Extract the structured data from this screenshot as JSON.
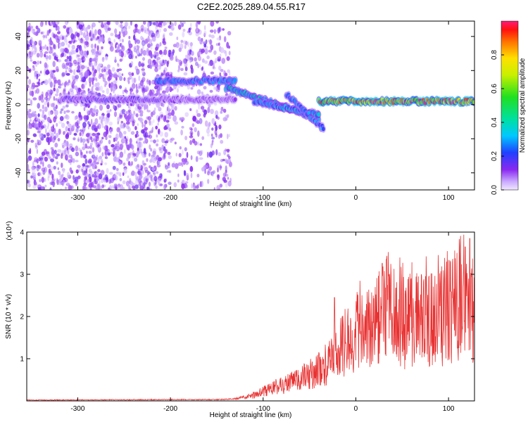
{
  "title": "C2E2.2025.289.04.55.R17",
  "chart_data": [
    {
      "type": "heatmap",
      "name": "spectrogram",
      "xlabel": "Height of straight line (km)",
      "ylabel": "Frequency (Hz)",
      "xlim": [
        -355,
        128
      ],
      "ylim": [
        -50,
        49
      ],
      "xticks": [
        -300,
        -200,
        -100,
        0,
        100
      ],
      "yticks": [
        -40,
        -20,
        0,
        20,
        40
      ],
      "colorbar": {
        "label": "Normalized spectral amplitude",
        "range": [
          0,
          1
        ],
        "ticks": [
          "0.0",
          "0.2",
          "0.4",
          "0.6",
          "0.8"
        ],
        "tick_values": [
          0.0,
          0.2,
          0.4,
          0.6,
          0.8
        ]
      },
      "scatter_region": {
        "x": [
          -355,
          -135
        ],
        "y": [
          -50,
          49
        ],
        "amplitude": 0.08
      },
      "features": [
        {
          "name": "upper-band",
          "x": [
            -215,
            -130
          ],
          "y": [
            14,
            14
          ],
          "amplitude": 0.3
        },
        {
          "name": "lower-band-left",
          "x": [
            -320,
            -210
          ],
          "y": [
            3,
            3
          ],
          "amplitude": 0.15
        },
        {
          "name": "lower-band-mid",
          "x": [
            -210,
            -130
          ],
          "y": [
            3,
            3
          ],
          "amplitude": 0.12
        },
        {
          "name": "drop-segment",
          "x": [
            -140,
            -40
          ],
          "y": [
            10,
            -8
          ],
          "amplitude": 0.4
        },
        {
          "name": "lower-drop",
          "x": [
            -110,
            -40
          ],
          "y": [
            2,
            -6
          ],
          "amplitude": 0.35
        },
        {
          "name": "tail-segment",
          "x": [
            -75,
            -35
          ],
          "y": [
            6,
            -14
          ],
          "amplitude": 0.3
        },
        {
          "name": "flat-band",
          "x": [
            -40,
            128
          ],
          "y": [
            2,
            2
          ],
          "amplitude": 0.95
        }
      ]
    },
    {
      "type": "line",
      "name": "snr",
      "xlabel": "Height of straight line (km)",
      "ylabel": "SNR (10 * v/v)",
      "scale_label": "(x10⁴)",
      "xlim": [
        -355,
        128
      ],
      "ylim": [
        0,
        4
      ],
      "xticks": [
        -300,
        -200,
        -100,
        0,
        100
      ],
      "yticks": [
        1,
        2,
        3,
        4
      ],
      "color": "#e83232",
      "envelope": [
        {
          "x": -355,
          "y": 0.02
        },
        {
          "x": -200,
          "y": 0.03
        },
        {
          "x": -150,
          "y": 0.03
        },
        {
          "x": -130,
          "y": 0.05
        },
        {
          "x": -110,
          "y": 0.15
        },
        {
          "x": -90,
          "y": 0.35
        },
        {
          "x": -70,
          "y": 0.5
        },
        {
          "x": -50,
          "y": 0.7
        },
        {
          "x": -30,
          "y": 1.0
        },
        {
          "x": -20,
          "y": 1.4
        },
        {
          "x": -10,
          "y": 1.6
        },
        {
          "x": 0,
          "y": 1.8
        },
        {
          "x": 20,
          "y": 2.0
        },
        {
          "x": 35,
          "y": 2.6
        },
        {
          "x": 50,
          "y": 2.1
        },
        {
          "x": 80,
          "y": 2.2
        },
        {
          "x": 100,
          "y": 2.4
        },
        {
          "x": 120,
          "y": 3.0
        },
        {
          "x": 128,
          "y": 2.2
        }
      ],
      "peaks": [
        {
          "x": 33,
          "y": 3.35
        },
        {
          "x": 123,
          "y": 3.85
        },
        {
          "x": 118,
          "y": 3.65
        },
        {
          "x": -23,
          "y": 2.45
        }
      ]
    }
  ]
}
